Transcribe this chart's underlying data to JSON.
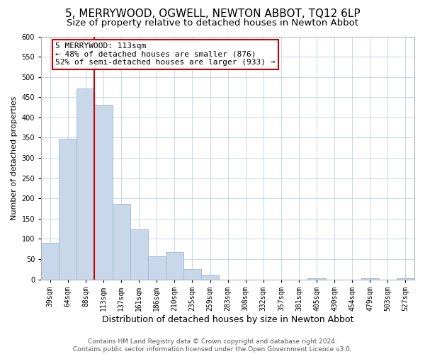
{
  "title": "5, MERRYWOOD, OGWELL, NEWTON ABBOT, TQ12 6LP",
  "subtitle": "Size of property relative to detached houses in Newton Abbot",
  "xlabel": "Distribution of detached houses by size in Newton Abbot",
  "ylabel": "Number of detached properties",
  "bar_labels": [
    "39sqm",
    "64sqm",
    "88sqm",
    "113sqm",
    "137sqm",
    "161sqm",
    "186sqm",
    "210sqm",
    "235sqm",
    "259sqm",
    "283sqm",
    "308sqm",
    "332sqm",
    "357sqm",
    "381sqm",
    "405sqm",
    "430sqm",
    "454sqm",
    "479sqm",
    "503sqm",
    "527sqm"
  ],
  "bar_heights": [
    90,
    348,
    472,
    432,
    186,
    123,
    57,
    68,
    25,
    12,
    0,
    0,
    0,
    0,
    0,
    3,
    0,
    0,
    3,
    0,
    3
  ],
  "bar_color": "#c8d8ea",
  "bar_edge_color": "#9ab8d0",
  "vline_color": "#cc0000",
  "annotation_text": "5 MERRYWOOD: 113sqm\n← 48% of detached houses are smaller (876)\n52% of semi-detached houses are larger (933) →",
  "annotation_box_edge": "#cc0000",
  "ylim": [
    0,
    600
  ],
  "yticks": [
    0,
    50,
    100,
    150,
    200,
    250,
    300,
    350,
    400,
    450,
    500,
    550,
    600
  ],
  "footer_line1": "Contains HM Land Registry data © Crown copyright and database right 2024.",
  "footer_line2": "Contains public sector information licensed under the Open Government Licence v3.0.",
  "background_color": "#ffffff",
  "grid_color": "#c0d0e0",
  "title_fontsize": 11,
  "subtitle_fontsize": 9.5,
  "xlabel_fontsize": 9,
  "ylabel_fontsize": 8,
  "tick_fontsize": 7,
  "annotation_fontsize": 8,
  "footer_fontsize": 6.5
}
